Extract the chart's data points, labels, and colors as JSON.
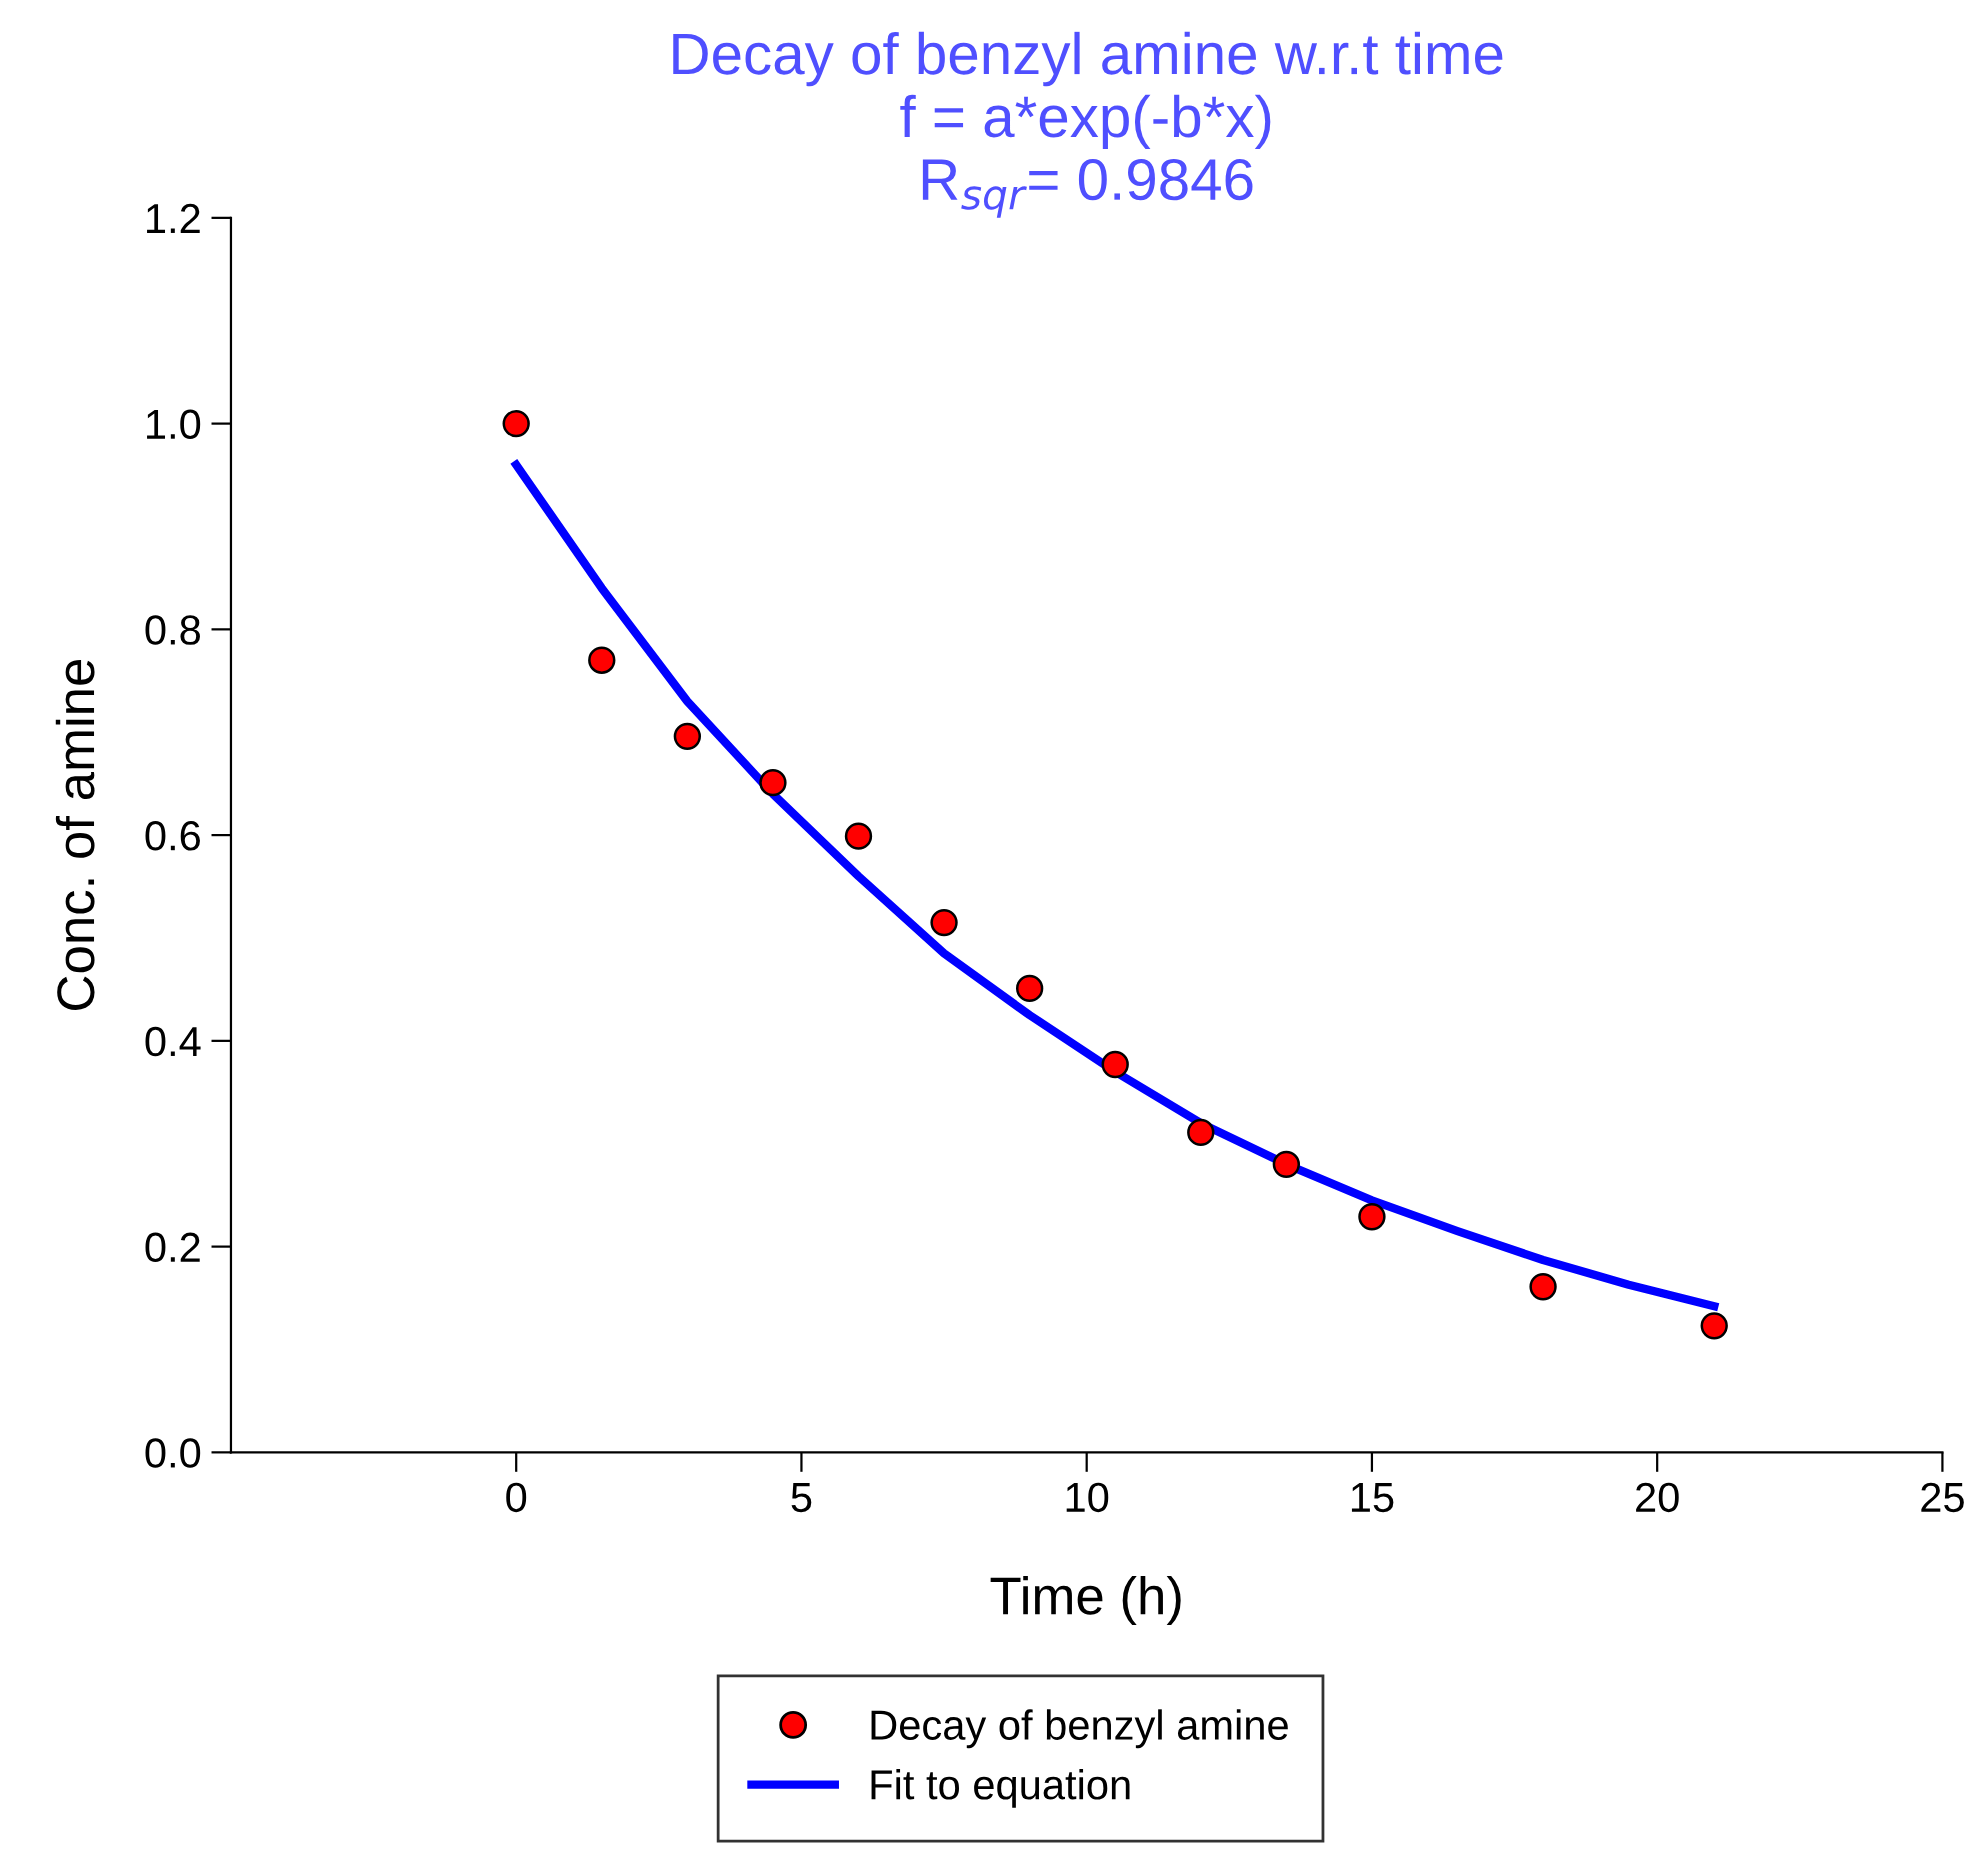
{
  "chart_data": {
    "type": "scatter",
    "title": "Decay of benzyl amine w.r.t time\nf = a*exp(-b*x)\nR$_{sqr}$= 0.9846",
    "xlabel": "Time (h)",
    "ylabel": "Conc. of amine",
    "xlim": [
      -5,
      25
    ],
    "xticks": [
      0,
      5,
      10,
      15,
      20,
      25
    ],
    "ylim": [
      0,
      1.2
    ],
    "yticks": [
      {
        "value": 0,
        "label": "0.0"
      },
      {
        "value": 0.2,
        "label": "0.2"
      },
      {
        "value": 0.4,
        "label": "0.4"
      },
      {
        "value": 0.6,
        "label": "0.6"
      },
      {
        "value": 0.8,
        "label": "0.8"
      },
      {
        "value": 1.0,
        "label": "1.0"
      },
      {
        "value": 1.2,
        "label": "1.2"
      }
    ],
    "grid": false,
    "legend": "bottom",
    "series": [
      {
        "name": "Decay of benzyl amine",
        "color": "#ff0000",
        "marker": "circle",
        "x": [
          0,
          1.5,
          3,
          4.5,
          6,
          7.5,
          9,
          10.5,
          12,
          13.5,
          15,
          18,
          21
        ],
        "values": [
          1.0,
          0.77,
          0.696,
          0.651,
          0.599,
          0.515,
          0.451,
          0.377,
          0.311,
          0.28,
          0.229,
          0.161,
          0.123
        ]
      },
      {
        "name": "Fit to equation",
        "type": "line",
        "color": "#0000ff",
        "marker": "none",
        "line_style": "solid",
        "x": [
          0,
          1.5,
          3,
          4.5,
          6,
          7.5,
          9,
          10.5,
          12,
          13.5,
          15,
          16.5,
          18,
          19.5,
          21
        ],
        "values": [
          0.96,
          0.84,
          0.73,
          0.64,
          0.56,
          0.485,
          0.425,
          0.37,
          0.32,
          0.28,
          0.245,
          0.215,
          0.187,
          0.163,
          0.142
        ]
      }
    ]
  }
}
